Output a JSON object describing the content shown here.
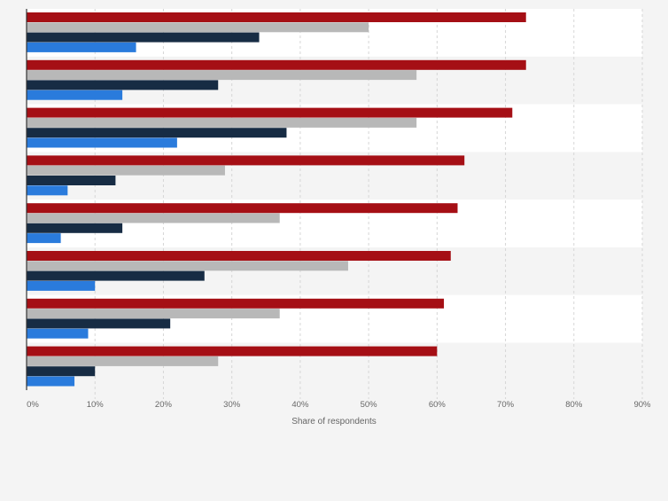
{
  "chart_data": {
    "type": "bar",
    "orientation": "horizontal",
    "categories": [
      "",
      "",
      "",
      "",
      "",
      "",
      "",
      ""
    ],
    "series": [
      {
        "color": "#a50f15",
        "values": [
          73,
          73,
          71,
          64,
          63,
          62,
          61,
          60
        ]
      },
      {
        "color": "#b8b8b8",
        "values": [
          50,
          57,
          57,
          29,
          37,
          47,
          37,
          28
        ]
      },
      {
        "color": "#172c44",
        "values": [
          34,
          28,
          38,
          13,
          14,
          26,
          21,
          10
        ]
      },
      {
        "color": "#2a7bdc",
        "values": [
          16,
          14,
          22,
          6,
          5,
          10,
          9,
          7
        ]
      }
    ],
    "xlabel": "Share of respondents",
    "xlim": [
      0,
      90
    ],
    "xticks": [
      0,
      10,
      20,
      30,
      40,
      50,
      60,
      70,
      80,
      90
    ],
    "xtick_labels": [
      "0%",
      "10%",
      "20%",
      "30%",
      "40%",
      "50%",
      "60%",
      "70%",
      "80%",
      "90%"
    ],
    "grid": true,
    "legend": "none"
  }
}
